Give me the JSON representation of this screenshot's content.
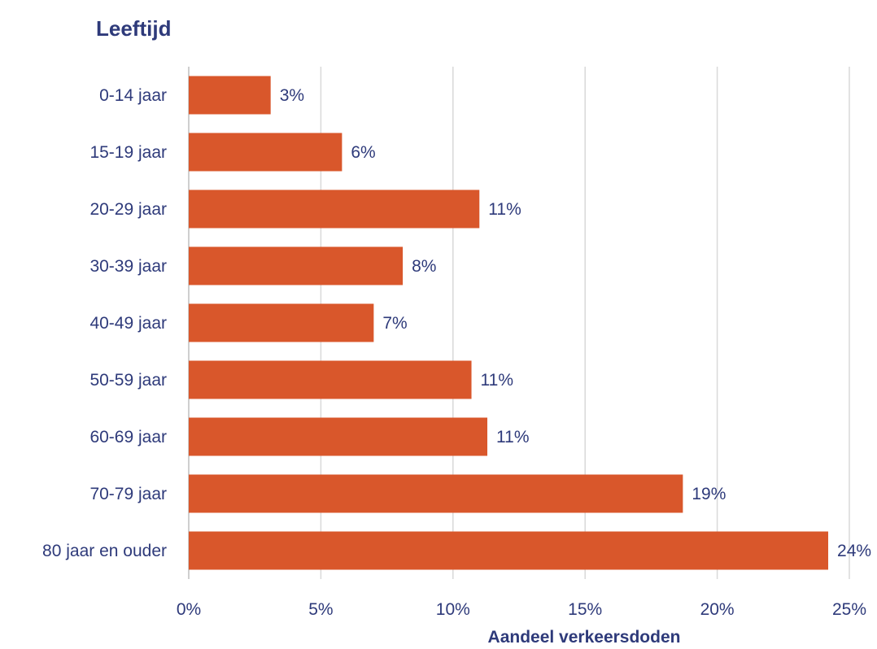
{
  "chart_data": {
    "type": "bar",
    "orientation": "horizontal",
    "title": "Leeftijd",
    "xlabel": "Aandeel verkeersdoden",
    "ylabel": "",
    "categories": [
      "0-14 jaar",
      "15-19 jaar",
      "20-29 jaar",
      "30-39 jaar",
      "40-49 jaar",
      "50-59 jaar",
      "60-69 jaar",
      "70-79 jaar",
      "80 jaar en ouder"
    ],
    "values": [
      3.1,
      5.8,
      11.0,
      8.1,
      7.0,
      10.7,
      11.3,
      18.7,
      24.2
    ],
    "data_labels": [
      "3%",
      "6%",
      "11%",
      "8%",
      "7%",
      "11%",
      "11%",
      "19%",
      "24%"
    ],
    "xlim": [
      0,
      25
    ],
    "xticks": [
      "0%",
      "5%",
      "10%",
      "15%",
      "20%",
      "25%"
    ],
    "grid": "vertical",
    "legend": "none"
  },
  "colors": {
    "bar": "#d9572b",
    "text": "#2e3a7a",
    "grid": "#d9d9d9"
  }
}
